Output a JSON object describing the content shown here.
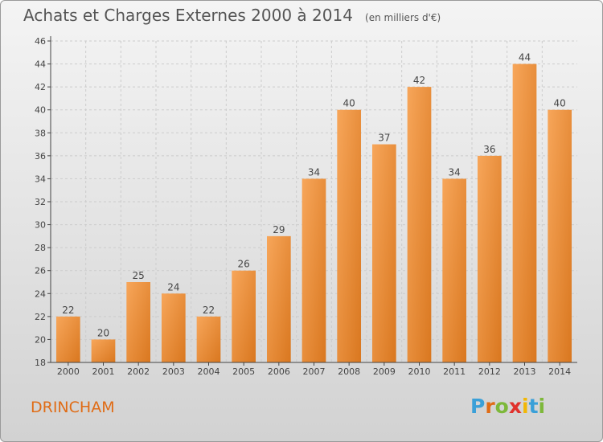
{
  "chart_title": "Achats et Charges Externes 2000 à 2014",
  "chart_unit": "(en milliers d'€)",
  "town": "DRINCHAM",
  "logo": {
    "letters": [
      "P",
      "r",
      "o",
      "x",
      "i",
      "t",
      "i"
    ],
    "colors": [
      "#3aa0d8",
      "#e06c16",
      "#7db83a",
      "#e0312c",
      "#f2b705",
      "#3aa0d8",
      "#7db83a"
    ]
  },
  "colors": {
    "bar_light": "#f7a65a",
    "bar_dark": "#d9771f",
    "axis": "#444444",
    "grid": "#cccccc"
  },
  "chart_data": {
    "type": "bar",
    "title": "Achats et Charges Externes 2000 à 2014",
    "subtitle": "(en milliers d'€)",
    "categories": [
      "2000",
      "2001",
      "2002",
      "2003",
      "2004",
      "2005",
      "2006",
      "2007",
      "2008",
      "2009",
      "2010",
      "2011",
      "2012",
      "2013",
      "2014"
    ],
    "values": [
      22,
      20,
      25,
      24,
      22,
      26,
      29,
      34,
      40,
      37,
      42,
      34,
      36,
      44,
      40
    ],
    "ylim": [
      18,
      46
    ],
    "yticks": [
      18,
      20,
      22,
      24,
      26,
      28,
      30,
      32,
      34,
      36,
      38,
      40,
      42,
      44,
      46
    ],
    "grid": true,
    "data_labels": true
  }
}
